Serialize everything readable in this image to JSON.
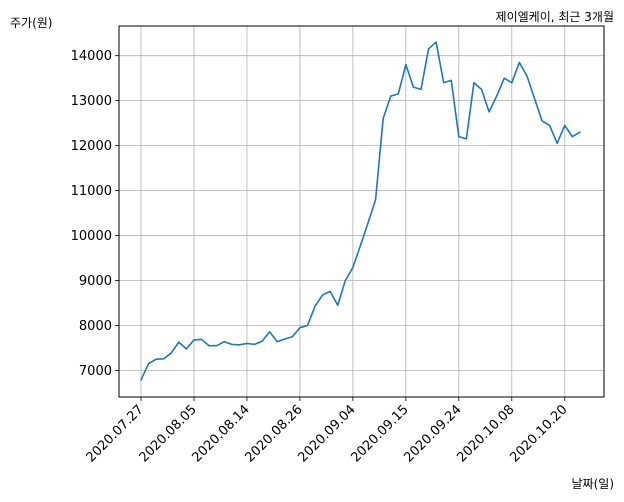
{
  "chart_data": {
    "type": "line",
    "title": "제이엘케이, 최근 3개월",
    "xlabel": "날짜(일)",
    "ylabel": "주가(원)",
    "grid": true,
    "legend": "none",
    "line_color": "#1f77b4",
    "ylim": [
      6410,
      14660
    ],
    "yticks": [
      7000,
      8000,
      9000,
      10000,
      11000,
      12000,
      13000,
      14000
    ],
    "xtick_labels": [
      "2020.07.27",
      "2020.08.05",
      "2020.08.14",
      "2020.08.26",
      "2020.09.04",
      "2020.09.15",
      "2020.09.24",
      "2020.10.08",
      "2020.10.20"
    ],
    "xtick_indices": [
      0,
      7,
      14,
      21,
      28,
      35,
      42,
      49,
      56
    ],
    "dates": [
      "2020.07.27",
      "2020.07.28",
      "2020.07.29",
      "2020.07.30",
      "2020.07.31",
      "2020.08.03",
      "2020.08.04",
      "2020.08.05",
      "2020.08.06",
      "2020.08.07",
      "2020.08.10",
      "2020.08.11",
      "2020.08.12",
      "2020.08.13",
      "2020.08.14",
      "2020.08.18",
      "2020.08.19",
      "2020.08.20",
      "2020.08.21",
      "2020.08.24",
      "2020.08.25",
      "2020.08.26",
      "2020.08.27",
      "2020.08.28",
      "2020.08.31",
      "2020.09.01",
      "2020.09.02",
      "2020.09.03",
      "2020.09.04",
      "2020.09.07",
      "2020.09.08",
      "2020.09.09",
      "2020.09.10",
      "2020.09.11",
      "2020.09.14",
      "2020.09.15",
      "2020.09.16",
      "2020.09.17",
      "2020.09.18",
      "2020.09.21",
      "2020.09.22",
      "2020.09.23",
      "2020.09.24",
      "2020.09.25",
      "2020.09.28",
      "2020.09.29",
      "2020.10.05",
      "2020.10.06",
      "2020.10.07",
      "2020.10.08",
      "2020.10.12",
      "2020.10.13",
      "2020.10.14",
      "2020.10.15",
      "2020.10.16",
      "2020.10.19",
      "2020.10.20",
      "2020.10.21",
      "2020.10.22"
    ],
    "values": [
      6790,
      7150,
      7250,
      7260,
      7390,
      7630,
      7480,
      7680,
      7690,
      7550,
      7550,
      7640,
      7580,
      7570,
      7600,
      7580,
      7650,
      7860,
      7640,
      7700,
      7750,
      7950,
      8000,
      8430,
      8680,
      8760,
      8450,
      9000,
      9290,
      9780,
      10280,
      10800,
      12600,
      13100,
      13150,
      13800,
      13300,
      13250,
      14150,
      14300,
      13400,
      13450,
      12200,
      12150,
      13400,
      13250,
      12750,
      13100,
      13500,
      13400,
      13850,
      13550,
      13050,
      12550,
      12450,
      12050,
      12450,
      12200,
      12300
    ]
  }
}
